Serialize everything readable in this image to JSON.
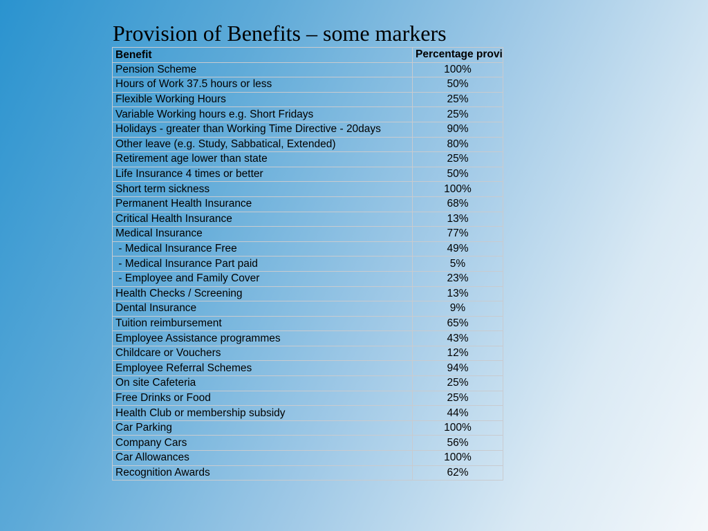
{
  "slide": {
    "title": "Provision of Benefits – some markers"
  },
  "table": {
    "headers": {
      "benefit": "Benefit",
      "percentage": "Percentage providing"
    },
    "rows": [
      {
        "benefit": "Pension Scheme",
        "percentage": "100%"
      },
      {
        "benefit": "Hours of Work 37.5 hours or less",
        "percentage": "50%"
      },
      {
        "benefit": "Flexible Working Hours",
        "percentage": "25%"
      },
      {
        "benefit": "Variable Working hours e.g. Short Fridays",
        "percentage": "25%"
      },
      {
        "benefit": "Holidays - greater than Working Time Directive - 20days",
        "percentage": "90%"
      },
      {
        "benefit": "Other leave (e.g. Study, Sabbatical, Extended)",
        "percentage": "80%"
      },
      {
        "benefit": "Retirement age lower than state",
        "percentage": "25%"
      },
      {
        "benefit": "Life Insurance 4 times or better",
        "percentage": "50%"
      },
      {
        "benefit": "Short term sickness",
        "percentage": "100%"
      },
      {
        "benefit": "Permanent Health Insurance",
        "percentage": "68%"
      },
      {
        "benefit": "Critical Health Insurance",
        "percentage": "13%"
      },
      {
        "benefit": "Medical Insurance",
        "percentage": "77%"
      },
      {
        "benefit": " - Medical Insurance Free",
        "percentage": "49%"
      },
      {
        "benefit": " - Medical Insurance Part paid",
        "percentage": "5%"
      },
      {
        "benefit": " - Employee and Family Cover",
        "percentage": "23%"
      },
      {
        "benefit": "Health Checks / Screening",
        "percentage": "13%"
      },
      {
        "benefit": "Dental Insurance",
        "percentage": "9%"
      },
      {
        "benefit": "Tuition reimbursement",
        "percentage": "65%"
      },
      {
        "benefit": "Employee Assistance programmes",
        "percentage": "43%"
      },
      {
        "benefit": "Childcare or Vouchers",
        "percentage": "12%"
      },
      {
        "benefit": "Employee Referral Schemes",
        "percentage": "94%"
      },
      {
        "benefit": "On site Cafeteria",
        "percentage": "25%"
      },
      {
        "benefit": "Free Drinks or Food",
        "percentage": "25%"
      },
      {
        "benefit": "Health Club or membership subsidy",
        "percentage": "44%"
      },
      {
        "benefit": "Car Parking",
        "percentage": "100%"
      },
      {
        "benefit": "Company Cars",
        "percentage": "56%"
      },
      {
        "benefit": "Car Allowances",
        "percentage": "100%"
      },
      {
        "benefit": "Recognition Awards",
        "percentage": "62%"
      }
    ]
  },
  "colors": {
    "background_start": "#2a93cf",
    "background_end": "#f4f8fb",
    "table_border": "#c9cbcf",
    "text": "#000000"
  }
}
